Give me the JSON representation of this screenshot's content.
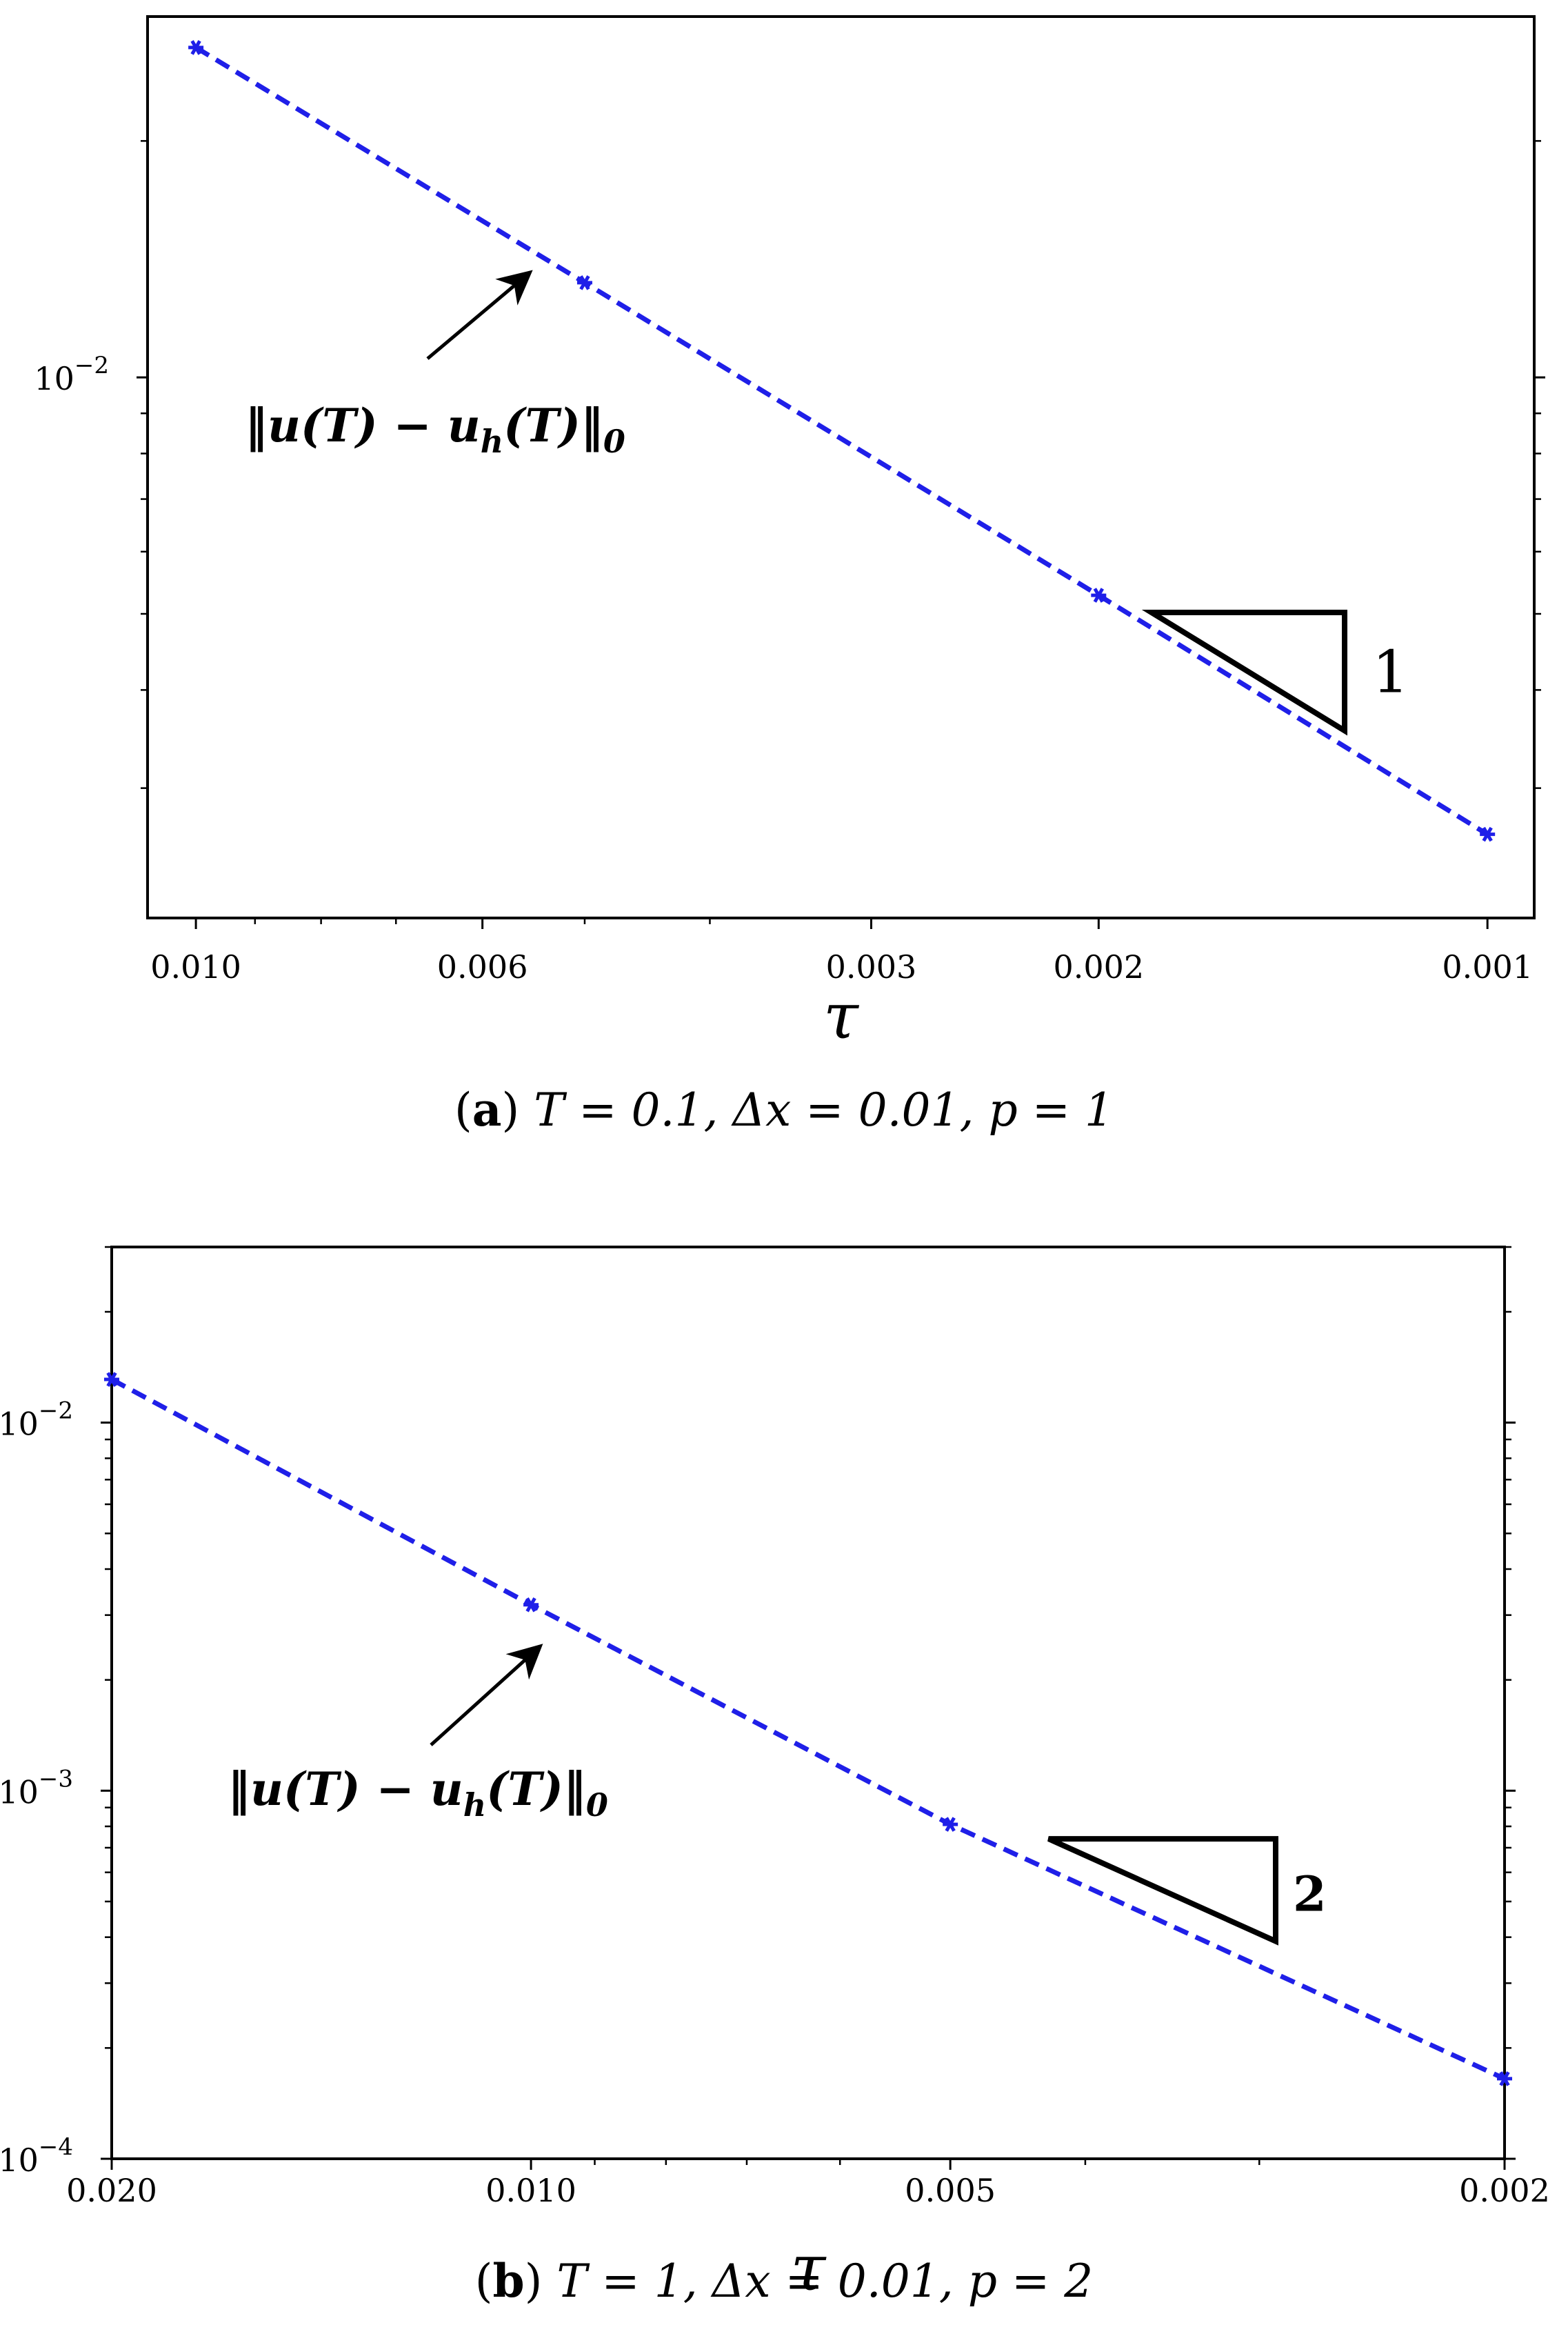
{
  "chart_data": [
    {
      "type": "line",
      "panel": "a",
      "scale": {
        "x": "log",
        "y": "log"
      },
      "x_direction": "reversed",
      "xlabel": "τ",
      "xlim": [
        0.0109,
        0.00092
      ],
      "ylim": [
        0.00205,
        0.0288
      ],
      "x_ticks": [
        0.01,
        0.006,
        0.003,
        0.002,
        0.001
      ],
      "x_tick_labels": [
        "0.010",
        "0.006",
        "0.003",
        "0.002",
        "0.001"
      ],
      "y_major_ticks": [
        {
          "value": 0.01,
          "base": "10",
          "exponent": "−2"
        }
      ],
      "y_minor_ticks": [
        0.003,
        0.004,
        0.005,
        0.006,
        0.007,
        0.008,
        0.009,
        0.02
      ],
      "series": [
        {
          "name": "‖u(T) − u_h(T)‖₀",
          "color": "#1f1fe8",
          "line_style": "dashed",
          "marker": "star",
          "x": [
            0.01,
            0.005,
            0.002,
            0.001
          ],
          "y": [
            0.0263,
            0.0132,
            0.00528,
            0.00262
          ]
        }
      ],
      "annotation": {
        "text_main": "‖u(T) − u",
        "text_sub": "h",
        "text_tail": "(T)‖",
        "text_tail_sub": "0"
      },
      "slope_triangle": {
        "label": "1",
        "x_left": 0.00182,
        "x_right": 0.00129,
        "y_top": 0.00502,
        "y_bottom": 0.00355
      }
    },
    {
      "type": "line",
      "panel": "b",
      "scale": {
        "x": "log",
        "y": "log"
      },
      "x_direction": "reversed",
      "xlabel": "τ",
      "xlim": [
        0.02,
        0.002
      ],
      "ylim": [
        0.0001,
        0.03
      ],
      "x_ticks": [
        0.02,
        0.01,
        0.005,
        0.002
      ],
      "x_tick_labels": [
        "0.020",
        "0.010",
        "0.005",
        "0.002"
      ],
      "y_major_ticks": [
        {
          "value": 0.01,
          "base": "10",
          "exponent": "−2"
        },
        {
          "value": 0.001,
          "base": "10",
          "exponent": "−3"
        },
        {
          "value": 0.0001,
          "base": "10",
          "exponent": "−4"
        }
      ],
      "y_minor_ticks": [
        0.0002,
        0.0003,
        0.0004,
        0.0005,
        0.0006,
        0.0007,
        0.0008,
        0.0009,
        0.002,
        0.003,
        0.004,
        0.005,
        0.006,
        0.007,
        0.008,
        0.009,
        0.02,
        0.03
      ],
      "series": [
        {
          "name": "‖u(T) − u_h(T)‖₀",
          "color": "#1f1fe8",
          "line_style": "dashed",
          "marker": "star",
          "x": [
            0.02,
            0.01,
            0.005,
            0.002
          ],
          "y": [
            0.0131,
            0.0032,
            0.00081,
            0.000165
          ]
        }
      ],
      "annotation": {
        "text_main": "‖u(T) − u",
        "text_sub": "h",
        "text_tail": "(T)‖",
        "text_tail_sub": "0"
      },
      "slope_triangle": {
        "label": "2",
        "x_left": 0.00425,
        "x_right": 0.00292,
        "y_top": 0.00074,
        "y_bottom": 0.00039
      }
    }
  ],
  "captions": [
    {
      "tag_open": "(",
      "tag_letter": "a",
      "tag_close": ")",
      "formula": "T = 0.1, Δx = 0.01, p = 1"
    },
    {
      "tag_open": "(",
      "tag_letter": "b",
      "tag_close": ")",
      "formula": "T = 1, Δx = 0.01, p = 2"
    }
  ]
}
